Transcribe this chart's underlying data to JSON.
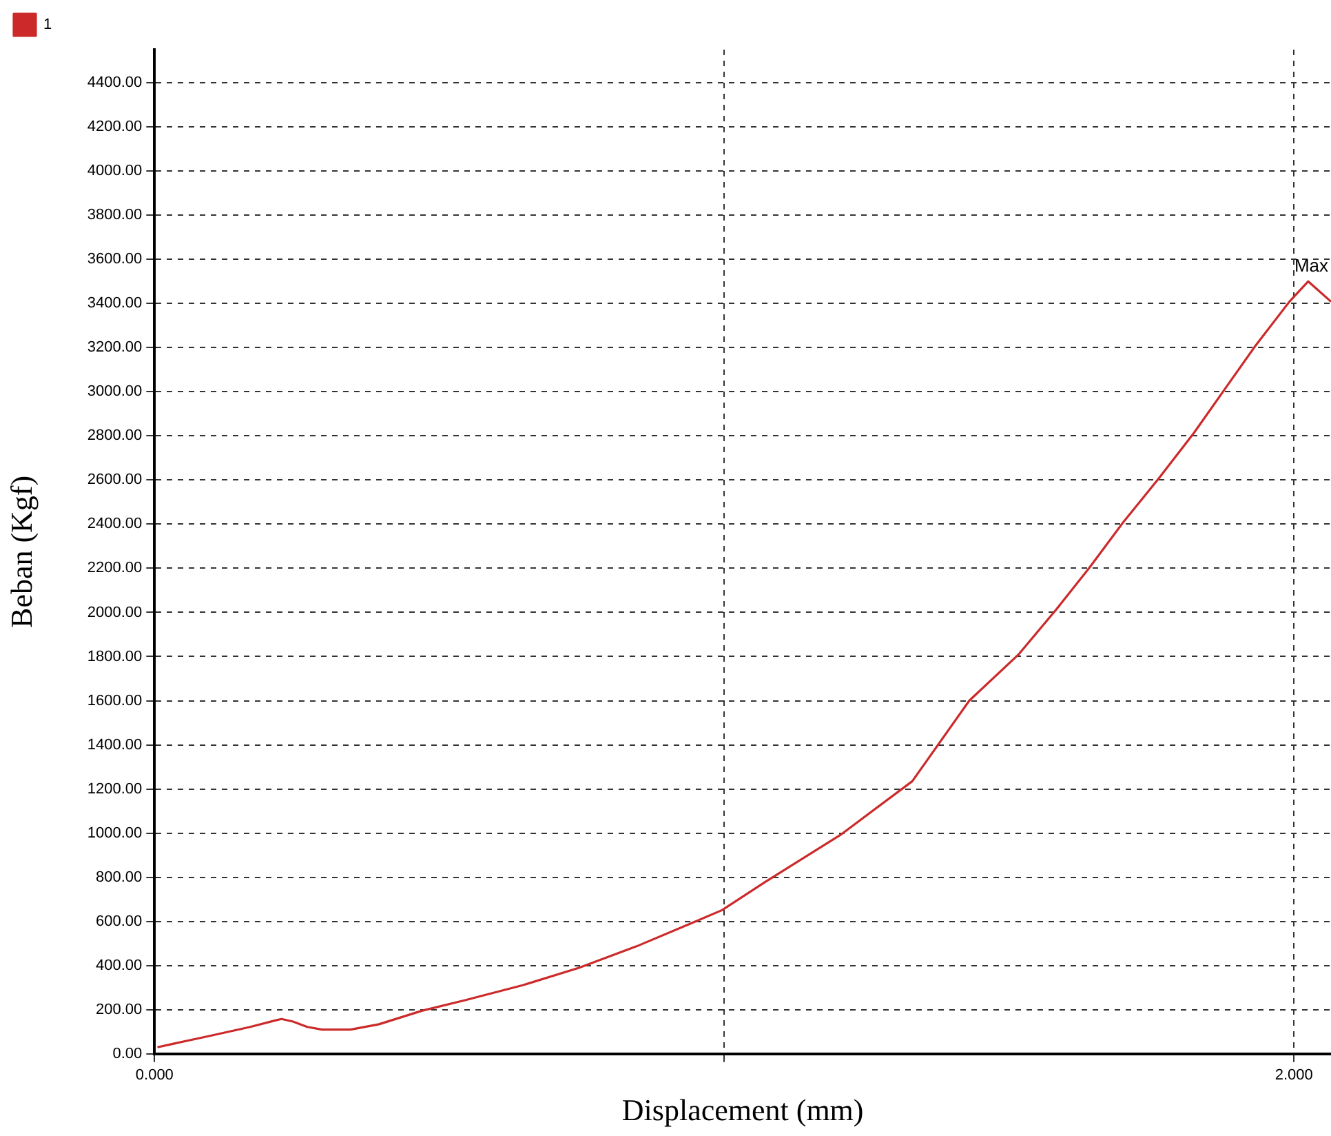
{
  "chart_data": {
    "type": "line",
    "xlabel": "Displacement (mm)",
    "ylabel": "Beban (Kgf)",
    "x": [
      0.005,
      0.093,
      0.168,
      0.213,
      0.223,
      0.243,
      0.268,
      0.294,
      0.344,
      0.394,
      0.469,
      0.545,
      0.645,
      0.745,
      0.846,
      0.946,
      0.996,
      1.072,
      1.204,
      1.33,
      1.43,
      1.516,
      1.581,
      1.641,
      1.699,
      1.762,
      1.824,
      1.932,
      1.992,
      2.025,
      2.065
    ],
    "series": [
      {
        "name": "1",
        "color": "#cc2a2a",
        "values": [
          30,
          79,
          122,
          152,
          158,
          146,
          122,
          110,
          110,
          134,
          195,
          243,
          310,
          390,
          487,
          596,
          651,
          779,
          992,
          1235,
          1600,
          1808,
          2008,
          2203,
          2404,
          2605,
          2812,
          3207,
          3408,
          3500,
          3408
        ]
      }
    ],
    "xlim": [
      0,
      2.065
    ],
    "ylim": [
      0,
      4550
    ],
    "xticks": [
      {
        "value": 0,
        "label": "0.000"
      },
      {
        "value": 1,
        "label": null
      },
      {
        "value": 2,
        "label": "2.000"
      }
    ],
    "yticks": [
      {
        "value": 0,
        "label": "0.00"
      },
      {
        "value": 200,
        "label": "200.00"
      },
      {
        "value": 400,
        "label": "400.00"
      },
      {
        "value": 600,
        "label": "600.00"
      },
      {
        "value": 800,
        "label": "800.00"
      },
      {
        "value": 1000,
        "label": "1000.00"
      },
      {
        "value": 1200,
        "label": "1200.00"
      },
      {
        "value": 1400,
        "label": "1400.00"
      },
      {
        "value": 1600,
        "label": "1600.00"
      },
      {
        "value": 1800,
        "label": "1800.00"
      },
      {
        "value": 2000,
        "label": "2000.00"
      },
      {
        "value": 2200,
        "label": "2200.00"
      },
      {
        "value": 2400,
        "label": "2400.00"
      },
      {
        "value": 2600,
        "label": "2600.00"
      },
      {
        "value": 2800,
        "label": "2800.00"
      },
      {
        "value": 3000,
        "label": "3000.00"
      },
      {
        "value": 3200,
        "label": "3200.00"
      },
      {
        "value": 3400,
        "label": "3400.00"
      },
      {
        "value": 3600,
        "label": "3600.00"
      },
      {
        "value": 3800,
        "label": "3800.00"
      },
      {
        "value": 4000,
        "label": "4000.00"
      },
      {
        "value": 4200,
        "label": "4200.00"
      },
      {
        "value": 4400,
        "label": "4400.00"
      }
    ],
    "annotations": [
      {
        "text": "Max",
        "x": 2.025,
        "y": 3500
      }
    ],
    "grid": true,
    "legend": "top left",
    "marker": "none",
    "line_style": "solid"
  }
}
